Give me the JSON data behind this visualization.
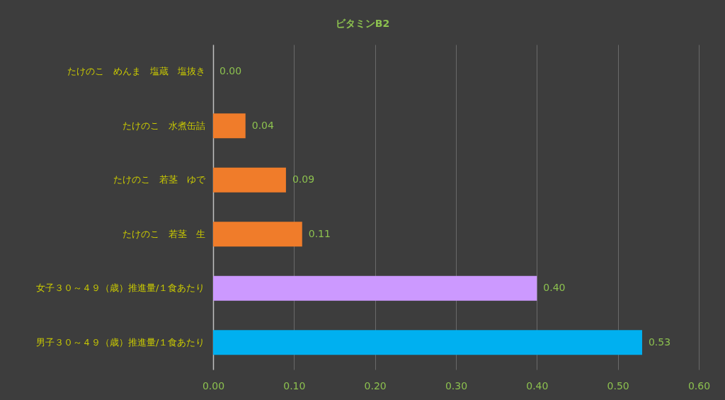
{
  "chart_data": {
    "type": "bar",
    "orientation": "horizontal",
    "title": "ビタミンB2",
    "categories": [
      "たけのこ　めんま　塩蔵　塩抜き",
      "たけのこ　水煮缶詰",
      "たけのこ　若茎　ゆで",
      "たけのこ　若茎　生",
      "女子３０～４９（歳）推進量/１食あたり",
      "男子３０～４９（歳）推進量/１食あたり"
    ],
    "values": [
      0.0,
      0.04,
      0.09,
      0.11,
      0.4,
      0.53
    ],
    "colors": [
      "#f07c2a",
      "#f07c2a",
      "#f07c2a",
      "#f07c2a",
      "#cc99ff",
      "#00b0f0"
    ],
    "value_labels": [
      "0.00",
      "0.04",
      "0.09",
      "0.11",
      "0.40",
      "0.53"
    ],
    "xlim": [
      0,
      0.6
    ],
    "xticks": [
      {
        "value": 0,
        "label": "0.00"
      },
      {
        "value": 0.1,
        "label": "0.10"
      },
      {
        "value": 0.2,
        "label": "0.20"
      },
      {
        "value": 0.3,
        "label": "0.30"
      },
      {
        "value": 0.4,
        "label": "0.40"
      },
      {
        "value": 0.5,
        "label": "0.50"
      },
      {
        "value": 0.6,
        "label": "0.60"
      }
    ],
    "grid": "x"
  }
}
